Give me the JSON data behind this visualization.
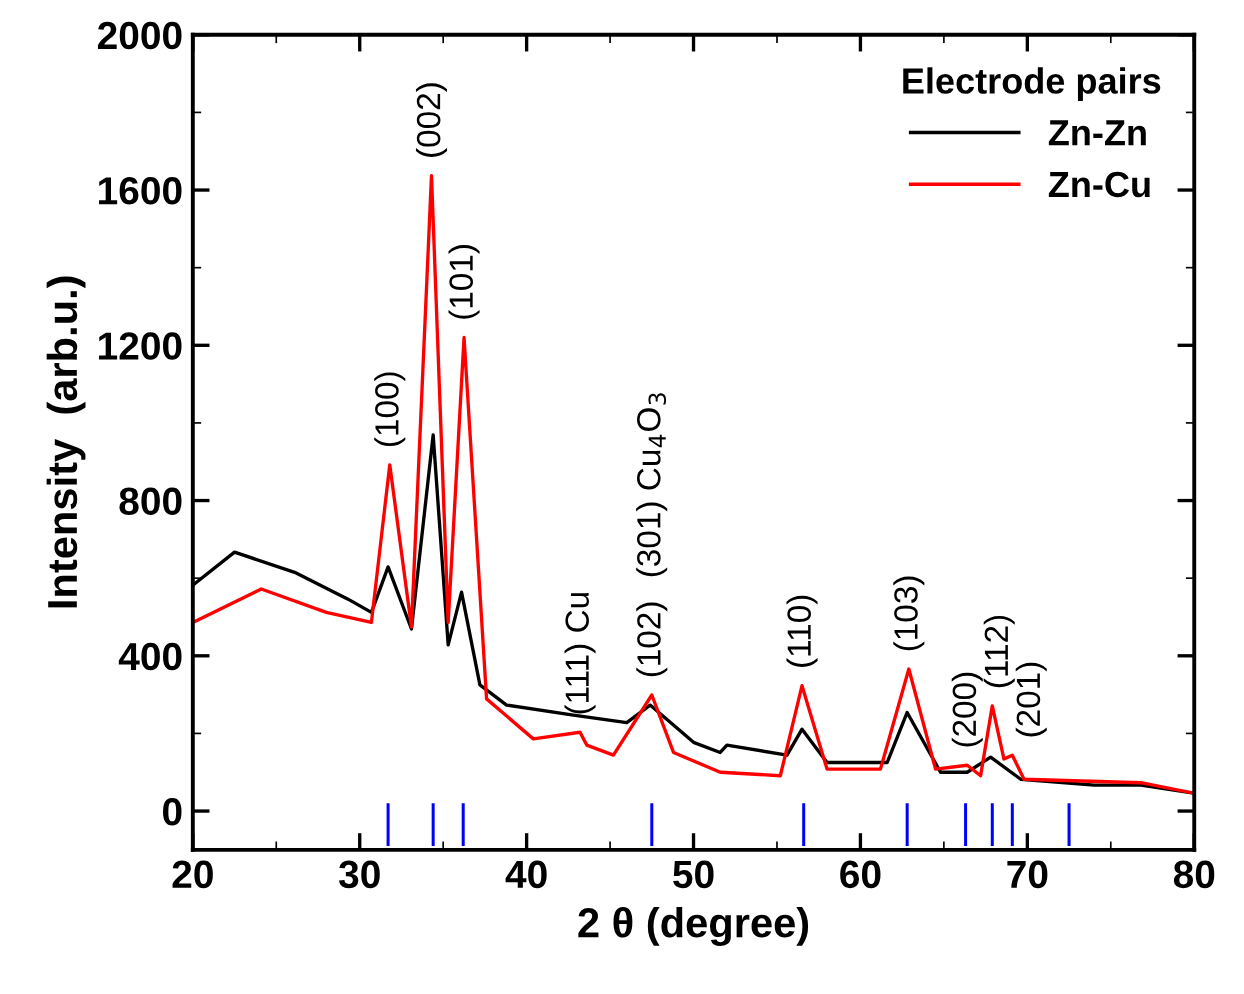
{
  "chart_data": {
    "type": "line",
    "xlabel": "2 θ (degree)",
    "ylabel": "Intensity  (arb.u.)",
    "legend_title": "Electrode pairs",
    "legend": "top right",
    "grid": false,
    "marker": "none",
    "line_style": "solid",
    "xlim": [
      20,
      80
    ],
    "xticks": [
      20,
      30,
      40,
      50,
      60,
      70,
      80
    ],
    "ylim": [
      -100,
      2000
    ],
    "yticks": [
      0,
      400,
      800,
      1200,
      1600,
      2000
    ],
    "series": [
      {
        "name": "Zn-Zn",
        "color": "#000000",
        "x": [
          20,
          22.5,
          26.1,
          29.3,
          30.7,
          31.7,
          33.1,
          34.4,
          35.3,
          36.1,
          37.2,
          38.8,
          42.8,
          46,
          47.4,
          50,
          51.6,
          52,
          55.6,
          56.5,
          58,
          61.6,
          62.8,
          64.8,
          66.4,
          67.8,
          69.6,
          74,
          76.8,
          80
        ],
        "values": [
          582,
          667,
          615,
          546,
          512,
          629,
          469,
          969,
          428,
          564,
          325,
          273,
          247,
          228,
          273,
          177,
          151,
          170,
          144,
          211,
          125,
          125,
          254,
          100,
          100,
          139,
          82,
          67,
          67,
          46
        ]
      },
      {
        "name": "Zn-Cu",
        "color": "#ff0000",
        "x": [
          20,
          24.1,
          28,
          30.7,
          31.8,
          33.1,
          34.3,
          35.3,
          36.25,
          37.6,
          40.4,
          43.2,
          43.6,
          45.2,
          47.5,
          48.8,
          51.6,
          55.2,
          56.5,
          58,
          61.2,
          62.9,
          64.5,
          66.4,
          67.2,
          67.9,
          68.6,
          69.1,
          69.8,
          76.8,
          80
        ],
        "values": [
          486,
          572,
          512,
          486,
          892,
          474,
          1637,
          486,
          1220,
          289,
          186,
          203,
          170,
          144,
          299,
          151,
          100,
          91,
          323,
          108,
          108,
          366,
          108,
          118,
          91,
          271,
          134,
          144,
          82,
          73,
          46
        ]
      },
      {
        "type": "bar",
        "color": "#0000ff",
        "x": [
          31.7,
          34.4,
          36.2,
          47.5,
          56.6,
          62.8,
          66.3,
          67.9,
          69.1,
          72.5
        ],
        "base": [
          -90,
          -90,
          -90,
          -90,
          -90,
          -90,
          -90,
          -90,
          -90,
          -90
        ],
        "values": [
          110,
          110,
          110,
          110,
          110,
          110,
          110,
          110,
          110,
          110
        ]
      }
    ],
    "annotations": [
      {
        "text": "(100)",
        "x": 31.8,
        "y": 892
      },
      {
        "text": "(002)",
        "x": 34.3,
        "y": 1637
      },
      {
        "text": "(101)",
        "x": 36.25,
        "y": 1220
      },
      {
        "text": "(111) Cu",
        "x": 43.2,
        "y": 203
      },
      {
        "text": "(102)",
        "x": 47.5,
        "y": 299
      },
      "(301) Cu$_{4}$O$_{3}$",
      {
        "text": "(110)",
        "x": 56.5,
        "y": 323
      },
      {
        "text": "(103)",
        "x": 62.9,
        "y": 366
      },
      {
        "text": "(200)",
        "x": 66.4,
        "y": 118
      },
      {
        "text": "(112)",
        "x": 67.9,
        "y": 271
      },
      {
        "text": "(201)",
        "x": 69.1,
        "y": 144
      }
    ]
  }
}
